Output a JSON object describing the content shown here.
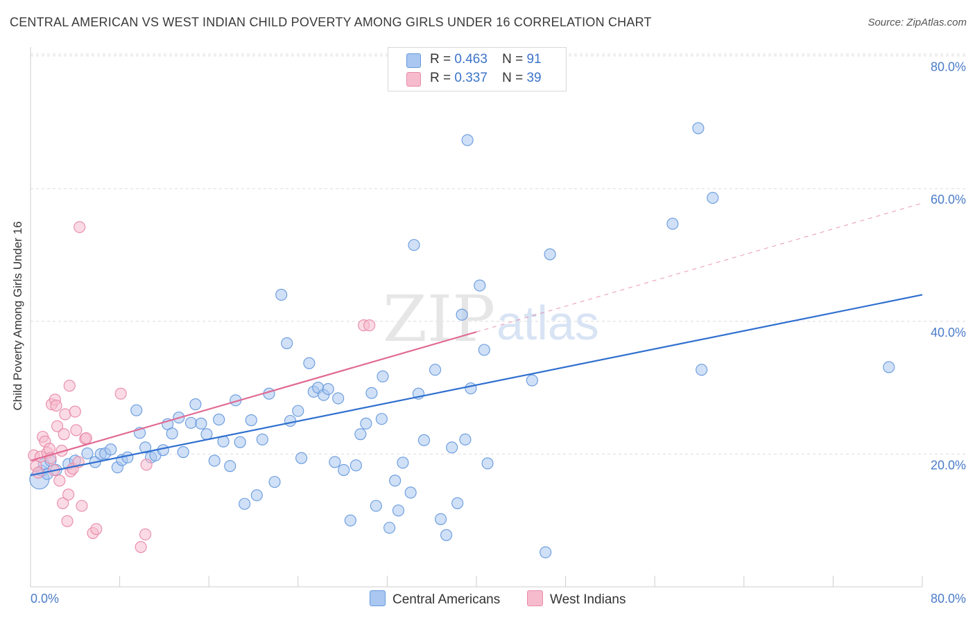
{
  "title": "CENTRAL AMERICAN VS WEST INDIAN CHILD POVERTY AMONG GIRLS UNDER 16 CORRELATION CHART",
  "source": "Source: ZipAtlas.com",
  "watermark": {
    "zip": "ZIP",
    "atlas": "atlas"
  },
  "colors": {
    "blue": "#6699dd",
    "blue_fill": "#a9c7f0",
    "blue_line": "#2f6fcf",
    "pink": "#e88aa8",
    "pink_fill": "#f6bccd",
    "pink_line": "#e06a93"
  },
  "stats": [
    {
      "swatch": "blue",
      "r_label": "R =",
      "r_value": "0.463",
      "n_label": "N =",
      "n_value": "91"
    },
    {
      "swatch": "pink",
      "r_label": "R =",
      "r_value": "0.337",
      "n_label": "N =",
      "n_value": "39"
    }
  ],
  "legend": [
    {
      "swatch": "blue",
      "label": "Central Americans"
    },
    {
      "swatch": "pink",
      "label": "West Indians"
    }
  ],
  "chart_data": {
    "type": "scatter",
    "title": "CENTRAL AMERICAN VS WEST INDIAN CHILD POVERTY AMONG GIRLS UNDER 16 CORRELATION CHART",
    "xlabel": "",
    "ylabel": "Child Poverty Among Girls Under 16",
    "xlim": [
      0,
      80
    ],
    "ylim": [
      0,
      82
    ],
    "x_tick_labels": [
      "0.0%",
      "80.0%"
    ],
    "y_tick_labels": [
      "20.0%",
      "40.0%",
      "60.0%",
      "80.0%"
    ],
    "y_ticks": [
      20,
      40,
      60,
      80
    ],
    "grid": "horizontal dashed",
    "legend_position": "bottom-center",
    "series": [
      {
        "name": "Central Americans",
        "color": "blue",
        "trend": {
          "x": [
            0,
            80
          ],
          "y": [
            16.8,
            44.0
          ],
          "style": "solid"
        },
        "points": [
          [
            0.8,
            16.2
          ],
          [
            1.0,
            17.5
          ],
          [
            1.2,
            18.5
          ],
          [
            1.5,
            17.0
          ],
          [
            1.8,
            19.0
          ],
          [
            2.3,
            17.6
          ],
          [
            3.4,
            18.5
          ],
          [
            4.0,
            19.0
          ],
          [
            5.1,
            20.1
          ],
          [
            5.8,
            18.8
          ],
          [
            6.3,
            20.0
          ],
          [
            6.7,
            20.1
          ],
          [
            7.2,
            20.7
          ],
          [
            7.8,
            18.0
          ],
          [
            8.2,
            19.1
          ],
          [
            8.7,
            19.5
          ],
          [
            9.5,
            26.6
          ],
          [
            9.8,
            23.2
          ],
          [
            10.3,
            21.0
          ],
          [
            10.8,
            19.5
          ],
          [
            11.2,
            19.8
          ],
          [
            11.9,
            20.6
          ],
          [
            12.3,
            24.5
          ],
          [
            12.7,
            23.1
          ],
          [
            13.3,
            25.5
          ],
          [
            13.7,
            20.3
          ],
          [
            14.4,
            24.7
          ],
          [
            14.8,
            27.5
          ],
          [
            15.3,
            24.6
          ],
          [
            15.8,
            23.0
          ],
          [
            16.5,
            19.0
          ],
          [
            16.9,
            25.2
          ],
          [
            17.3,
            21.9
          ],
          [
            17.9,
            18.2
          ],
          [
            18.4,
            28.1
          ],
          [
            18.8,
            21.8
          ],
          [
            19.2,
            12.5
          ],
          [
            19.8,
            25.1
          ],
          [
            20.3,
            13.8
          ],
          [
            20.8,
            22.2
          ],
          [
            21.4,
            29.1
          ],
          [
            21.9,
            15.8
          ],
          [
            22.5,
            44.0
          ],
          [
            23.0,
            36.7
          ],
          [
            23.3,
            25.0
          ],
          [
            24.0,
            26.5
          ],
          [
            24.3,
            19.4
          ],
          [
            25.0,
            33.7
          ],
          [
            25.4,
            29.4
          ],
          [
            25.8,
            30.0
          ],
          [
            26.3,
            28.9
          ],
          [
            26.7,
            29.8
          ],
          [
            27.3,
            18.8
          ],
          [
            27.6,
            28.4
          ],
          [
            28.1,
            17.6
          ],
          [
            28.7,
            10.0
          ],
          [
            29.2,
            18.3
          ],
          [
            29.6,
            23.0
          ],
          [
            30.1,
            24.6
          ],
          [
            30.6,
            29.2
          ],
          [
            31.0,
            12.2
          ],
          [
            31.6,
            31.7
          ],
          [
            32.2,
            8.9
          ],
          [
            32.7,
            16.0
          ],
          [
            33.0,
            11.5
          ],
          [
            33.4,
            18.7
          ],
          [
            34.1,
            14.2
          ],
          [
            34.4,
            51.5
          ],
          [
            34.8,
            29.1
          ],
          [
            35.3,
            22.1
          ],
          [
            36.3,
            32.7
          ],
          [
            36.8,
            10.2
          ],
          [
            37.3,
            7.8
          ],
          [
            37.8,
            21.0
          ],
          [
            38.3,
            12.6
          ],
          [
            39.0,
            22.2
          ],
          [
            39.2,
            67.3
          ],
          [
            39.5,
            29.9
          ],
          [
            40.3,
            45.4
          ],
          [
            40.7,
            35.7
          ],
          [
            41.0,
            18.6
          ],
          [
            45.0,
            31.1
          ],
          [
            46.2,
            5.2
          ],
          [
            46.6,
            50.1
          ],
          [
            57.6,
            54.7
          ],
          [
            59.9,
            69.1
          ],
          [
            60.2,
            32.7
          ],
          [
            61.2,
            58.6
          ],
          [
            77.0,
            33.1
          ],
          [
            38.7,
            41.0
          ],
          [
            31.5,
            25.3
          ]
        ]
      },
      {
        "name": "West Indians",
        "color": "pink",
        "trend": {
          "x": [
            0,
            40.0
          ],
          "y": [
            19.0,
            38.4
          ],
          "style": "solid",
          "extended": {
            "x": [
              40.0,
              80
            ],
            "y": [
              38.4,
              57.8
            ],
            "style": "dashed"
          }
        },
        "points": [
          [
            0.3,
            19.8
          ],
          [
            0.5,
            18.2
          ],
          [
            0.7,
            17.2
          ],
          [
            0.9,
            19.6
          ],
          [
            1.1,
            22.6
          ],
          [
            1.3,
            21.9
          ],
          [
            1.5,
            20.2
          ],
          [
            1.7,
            20.8
          ],
          [
            1.8,
            19.4
          ],
          [
            1.9,
            27.5
          ],
          [
            2.1,
            17.6
          ],
          [
            2.2,
            28.2
          ],
          [
            2.3,
            27.3
          ],
          [
            2.4,
            24.2
          ],
          [
            2.6,
            16.0
          ],
          [
            2.8,
            20.5
          ],
          [
            2.9,
            12.6
          ],
          [
            3.0,
            23.0
          ],
          [
            3.1,
            26.0
          ],
          [
            3.3,
            9.9
          ],
          [
            3.4,
            13.9
          ],
          [
            3.5,
            30.3
          ],
          [
            3.6,
            17.4
          ],
          [
            3.8,
            17.8
          ],
          [
            4.0,
            26.4
          ],
          [
            4.1,
            23.6
          ],
          [
            4.3,
            18.8
          ],
          [
            4.4,
            54.2
          ],
          [
            4.6,
            12.2
          ],
          [
            4.9,
            22.3
          ],
          [
            5.0,
            22.4
          ],
          [
            5.6,
            8.1
          ],
          [
            5.9,
            8.7
          ],
          [
            8.1,
            29.1
          ],
          [
            9.9,
            6.0
          ],
          [
            10.3,
            7.9
          ],
          [
            10.4,
            18.4
          ],
          [
            29.9,
            39.4
          ],
          [
            30.4,
            39.4
          ]
        ]
      }
    ]
  }
}
